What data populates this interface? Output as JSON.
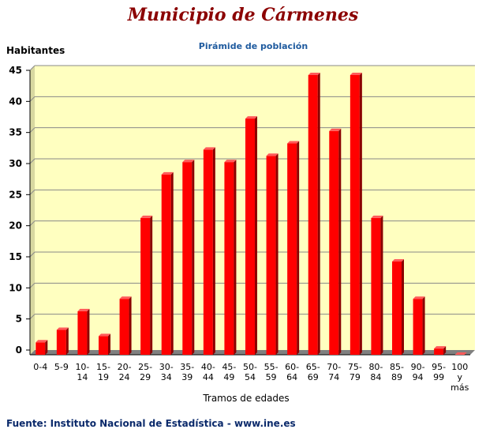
{
  "chart_data": {
    "type": "bar",
    "title": "Municipio de Cármenes",
    "subtitle": "Pirámide de población",
    "ylabel": "Habitantes",
    "xlabel": "Tramos de edades",
    "source": "Fuente: Instituto Nacional de Estadística - www.ine.es",
    "categories": [
      "0-4",
      "5-9",
      "10-14",
      "15-19",
      "20-24",
      "25-29",
      "30-34",
      "35-39",
      "40-44",
      "45-49",
      "50-54",
      "55-59",
      "60-64",
      "65-69",
      "70-74",
      "75-79",
      "80-84",
      "85-89",
      "90-94",
      "95-99",
      "100 y más"
    ],
    "category_lines": [
      [
        "0-4"
      ],
      [
        "5-9"
      ],
      [
        "10-",
        "14"
      ],
      [
        "15-",
        "19"
      ],
      [
        "20-",
        "24"
      ],
      [
        "25-",
        "29"
      ],
      [
        "30-",
        "34"
      ],
      [
        "35-",
        "39"
      ],
      [
        "40-",
        "44"
      ],
      [
        "45-",
        "49"
      ],
      [
        "50-",
        "54"
      ],
      [
        "55-",
        "59"
      ],
      [
        "60-",
        "64"
      ],
      [
        "65-",
        "69"
      ],
      [
        "70-",
        "74"
      ],
      [
        "75-",
        "79"
      ],
      [
        "80-",
        "84"
      ],
      [
        "85-",
        "89"
      ],
      [
        "90-",
        "94"
      ],
      [
        "95-",
        "99"
      ],
      [
        "100",
        "y",
        "más"
      ]
    ],
    "values": [
      2,
      4,
      7,
      3,
      9,
      22,
      29,
      31,
      33,
      31,
      38,
      32,
      34,
      45,
      36,
      45,
      22,
      15,
      9,
      1,
      0
    ],
    "yticks": [
      0,
      5,
      10,
      15,
      20,
      25,
      30,
      35,
      40,
      45
    ],
    "ylim": [
      0,
      45
    ],
    "grid": true,
    "colors": {
      "bar": "#ff0000",
      "bar_side": "#8b0000",
      "bar_top": "#ff5a5a",
      "plot_bg": "#ffffc0",
      "floor": "#808080",
      "grid": "#888888"
    }
  }
}
